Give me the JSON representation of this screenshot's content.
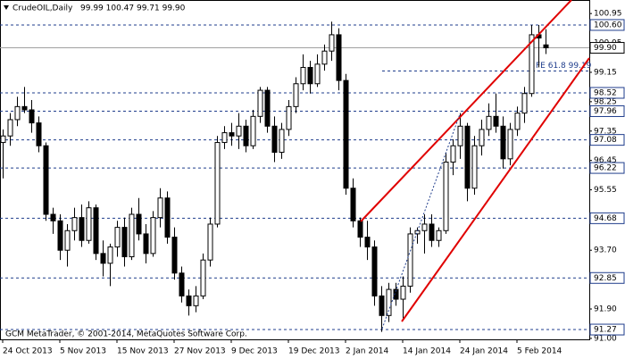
{
  "chart_data": {
    "type": "candlestick",
    "title": "CrudeOIL,Daily",
    "header_values": "99.99 100.47 99.71 99.90",
    "footer": "GCM MetaTrader, © 2001-2014, MetaQuotes Software Corp.",
    "categories": [
      "24 Oct 2013",
      null,
      null,
      null,
      null,
      null,
      null,
      null,
      "5 Nov 2013",
      null,
      null,
      null,
      null,
      null,
      null,
      null,
      "15 Nov 2013",
      null,
      null,
      null,
      null,
      null,
      null,
      null,
      "27 Nov 2013",
      null,
      null,
      null,
      null,
      null,
      null,
      null,
      "9 Dec 2013",
      null,
      null,
      null,
      null,
      null,
      null,
      null,
      "19 Dec 2013",
      null,
      null,
      null,
      null,
      null,
      null,
      null,
      "2 Jan 2014",
      null,
      null,
      null,
      null,
      null,
      null,
      null,
      "14 Jan 2014",
      null,
      null,
      null,
      null,
      null,
      null,
      null,
      "24 Jan 2014",
      null,
      null,
      null,
      null,
      null,
      null,
      null,
      "5 Feb 2014",
      null,
      null,
      null,
      null
    ],
    "open": [
      97.0,
      97.2,
      97.7,
      98.1,
      98.0,
      97.6,
      96.9,
      94.8,
      94.6,
      93.7,
      94.3,
      94.7,
      94.0,
      95.0,
      93.6,
      93.3,
      93.8,
      94.4,
      93.5,
      94.8,
      94.2,
      93.6,
      94.7,
      95.3,
      94.1,
      93.0,
      92.3,
      92.0,
      92.3,
      93.4,
      94.5,
      97.0,
      97.3,
      97.2,
      97.5,
      96.9,
      97.8,
      98.6,
      97.5,
      96.7,
      97.4,
      98.1,
      98.8,
      99.3,
      98.8,
      99.4,
      99.8,
      100.3,
      98.9,
      95.6,
      94.6,
      94.1,
      93.8,
      92.3,
      91.7,
      92.5,
      92.2,
      92.6,
      94.2,
      94.3,
      94.5,
      94.0,
      94.3,
      96.4,
      96.9,
      97.5,
      95.6,
      96.9,
      97.4,
      97.8,
      97.5,
      96.5,
      97.4,
      97.9,
      98.5,
      100.3,
      99.99
    ],
    "high": [
      97.4,
      97.9,
      98.4,
      98.7,
      98.3,
      97.8,
      97.0,
      95.0,
      94.8,
      94.5,
      95.0,
      95.1,
      95.2,
      95.1,
      94.0,
      93.9,
      94.6,
      94.7,
      95.0,
      95.3,
      94.5,
      94.9,
      95.6,
      95.5,
      94.4,
      93.2,
      92.5,
      92.6,
      93.6,
      94.7,
      97.2,
      97.5,
      97.6,
      97.9,
      97.7,
      98.0,
      98.7,
      98.7,
      97.8,
      97.6,
      98.3,
      99.0,
      99.7,
      99.5,
      99.7,
      100.0,
      100.7,
      100.5,
      99.1,
      95.9,
      94.7,
      94.6,
      94.0,
      92.6,
      92.7,
      92.7,
      92.9,
      94.4,
      94.4,
      94.8,
      94.8,
      94.4,
      96.7,
      97.1,
      97.9,
      97.6,
      97.2,
      97.7,
      98.2,
      98.5,
      97.8,
      97.6,
      98.1,
      98.7,
      100.6,
      100.6,
      100.47
    ],
    "low": [
      95.9,
      96.9,
      97.5,
      97.9,
      97.3,
      96.7,
      94.6,
      94.2,
      93.4,
      93.2,
      94.0,
      93.8,
      93.9,
      93.4,
      92.9,
      92.6,
      93.5,
      93.2,
      93.4,
      94.0,
      93.3,
      93.5,
      94.4,
      93.9,
      92.8,
      92.1,
      91.7,
      91.8,
      92.2,
      93.2,
      94.4,
      96.8,
      96.9,
      96.8,
      96.7,
      96.8,
      97.6,
      97.3,
      96.4,
      96.5,
      97.2,
      97.9,
      98.6,
      98.5,
      98.7,
      99.2,
      99.5,
      98.6,
      95.4,
      94.4,
      93.8,
      93.4,
      92.0,
      91.2,
      91.5,
      92.0,
      91.6,
      92.4,
      93.9,
      93.6,
      93.8,
      93.8,
      94.2,
      96.0,
      96.5,
      95.2,
      95.4,
      96.6,
      97.2,
      97.3,
      96.2,
      96.3,
      97.2,
      97.6,
      98.4,
      99.3,
      99.71
    ],
    "close": [
      97.2,
      97.7,
      98.1,
      98.0,
      97.6,
      96.9,
      94.8,
      94.6,
      93.7,
      94.3,
      94.7,
      94.0,
      95.0,
      93.6,
      93.3,
      93.8,
      94.4,
      93.5,
      94.8,
      94.2,
      93.6,
      94.7,
      95.3,
      94.1,
      93.0,
      92.3,
      92.0,
      92.3,
      93.4,
      94.5,
      97.0,
      97.3,
      97.2,
      97.5,
      96.9,
      97.8,
      98.6,
      97.5,
      96.7,
      97.4,
      98.1,
      98.8,
      99.3,
      98.8,
      99.4,
      99.8,
      100.3,
      98.9,
      95.6,
      94.6,
      94.1,
      93.8,
      92.3,
      91.7,
      92.5,
      92.2,
      92.6,
      94.2,
      94.3,
      94.5,
      94.0,
      94.3,
      96.4,
      96.9,
      97.5,
      95.6,
      96.9,
      97.4,
      97.8,
      97.5,
      96.5,
      97.4,
      97.9,
      98.5,
      100.3,
      100.2,
      99.9
    ],
    "up_color": "#ffffff",
    "down_color": "#000000",
    "outline_color": "#000000",
    "ylim": [
      90.97,
      101.31
    ],
    "yticks": [
      100.95,
      100.05,
      99.15,
      98.25,
      97.35,
      96.45,
      95.55,
      {
        "value": 93.7,
        "label": "93.70"
      },
      {
        "value": 91.9,
        "label": "91.90"
      },
      {
        "value": 91,
        "label": "91.00"
      }
    ],
    "levels": [
      {
        "value": 100.6,
        "label": "100.60"
      },
      98.52,
      97.96,
      97.08,
      96.22,
      94.68,
      92.85,
      91.27
    ],
    "level_color": "#1f3d8c",
    "current_price": {
      "value": 99.9,
      "label": "99.90"
    },
    "fe_level": {
      "value": 99.19,
      "label": "FE 61.8 99.19"
    }
  }
}
